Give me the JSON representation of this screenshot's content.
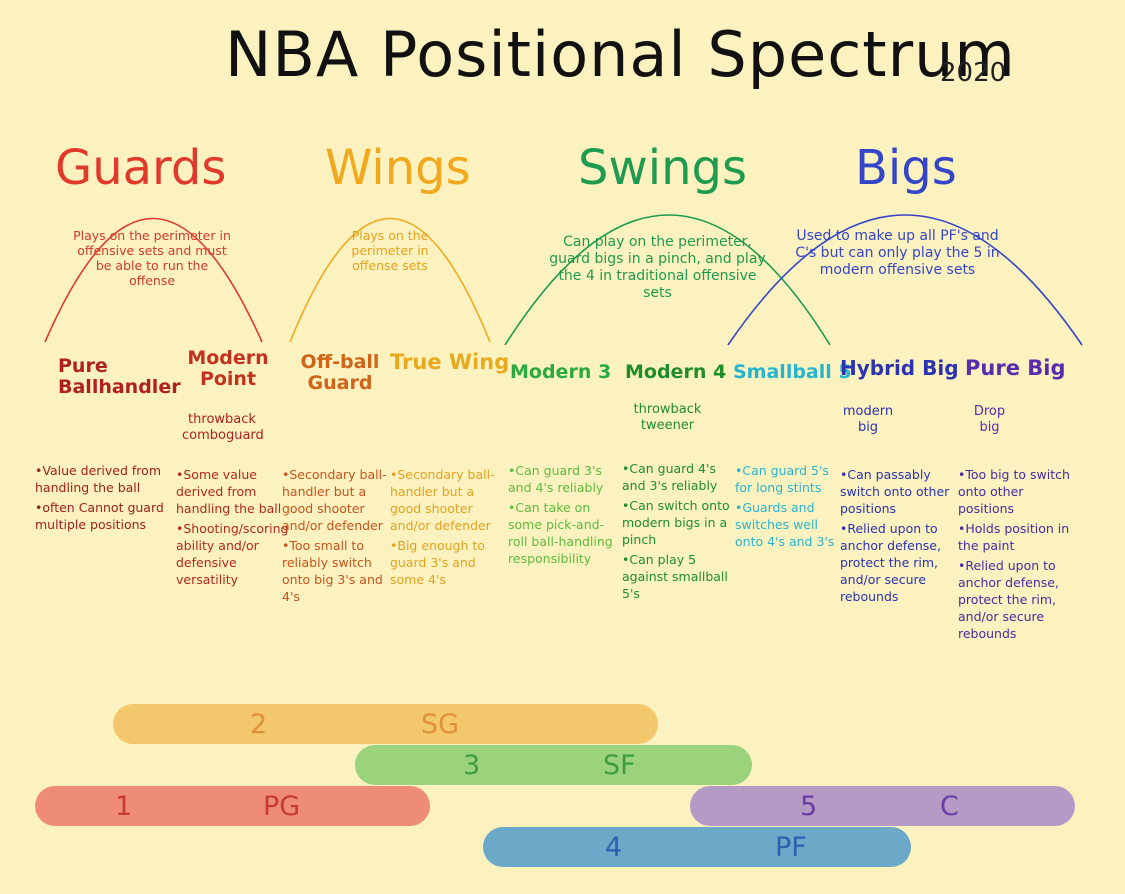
{
  "title": "NBA Positional Spectrum",
  "year": "2020",
  "colors": {
    "guards": "#E03A2B",
    "wings": "#F2A81D",
    "swings": "#1E9B4F",
    "bigs": "#3545C8",
    "bar1": "#EE8C78",
    "bar2": "#F3C76B",
    "bar3": "#9BD27C",
    "bar4": "#6CA9C8",
    "bar5": "#B49AC4"
  },
  "groups": [
    {
      "title": "Guards",
      "note": "Plays on the perimeter in offensive sets and must be able to run the offense"
    },
    {
      "title": "Wings",
      "note": "Plays on the perimeter in offense sets"
    },
    {
      "title": "Swings",
      "note": "Can play on the perimeter, guard bigs in a pinch, and play the 4 in traditional offensive sets"
    },
    {
      "title": "Bigs",
      "note": "Used to make up all PF's and C's but can only play the 5 in modern offensive sets"
    }
  ],
  "positions": [
    {
      "label": "Pure Ballhandler",
      "sub": "",
      "bullets": [
        "•Value derived from handling the ball",
        "•often Cannot guard multiple positions"
      ]
    },
    {
      "label": "Modern Point",
      "sub": "throwback comboguard",
      "bullets": [
        "•Some value derived from handling the ball",
        "•Shooting/scoring ability and/or defensive versatility"
      ]
    },
    {
      "label": "Off-ball Guard",
      "sub": "",
      "bullets": [
        "•Secondary ball-handler but a good shooter and/or defender",
        "•Too small to reliably switch onto big 3's and 4's"
      ]
    },
    {
      "label": "True Wing",
      "sub": "",
      "bullets": [
        "•Secondary ball-handler but a good shooter and/or defender",
        "•Big enough to guard 3's and some 4's"
      ]
    },
    {
      "label": "Modern 3",
      "sub": "",
      "bullets": [
        "•Can guard 3's and 4's reliably",
        "•Can take on some pick-and-roll ball-handling responsibility"
      ]
    },
    {
      "label": "Modern 4",
      "sub": "throwback tweener",
      "bullets": [
        "•Can guard 4's and 3's reliably",
        "•Can switch onto modern bigs in a pinch",
        "•Can play 5 against smallball 5's"
      ]
    },
    {
      "label": "Smallball 5",
      "sub": "",
      "bullets": [
        "•Can guard 5's for long stints",
        "•Guards and switches well onto 4's and 3's"
      ]
    },
    {
      "label": "Hybrid Big",
      "sub": "modern big",
      "bullets": [
        "•Can passably switch onto other positions",
        "•Relied upon to anchor defense, protect the rim, and/or secure rebounds"
      ]
    },
    {
      "label": "Pure Big",
      "sub": "Drop big",
      "bullets": [
        "•Too big to switch onto other positions",
        "•Holds position in the paint",
        "•Relied upon to anchor defense, protect the rim, and/or secure rebounds"
      ]
    }
  ],
  "bars": [
    {
      "number": "2",
      "abbr": "SG"
    },
    {
      "number": "3",
      "abbr": "SF"
    },
    {
      "number": "1",
      "abbr": "PG"
    },
    {
      "number": "5",
      "abbr": "C"
    },
    {
      "number": "4",
      "abbr": "PF"
    }
  ]
}
